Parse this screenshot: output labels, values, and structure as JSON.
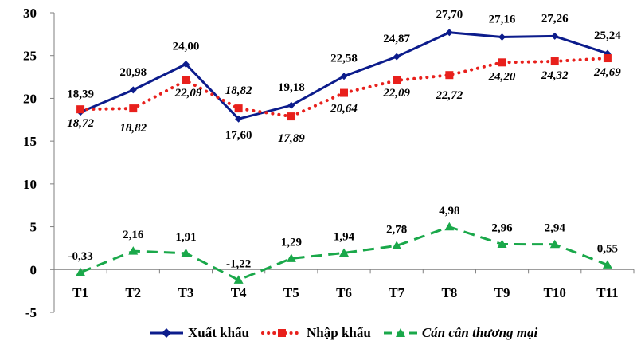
{
  "chart_data": {
    "type": "line",
    "categories": [
      "T1",
      "T2",
      "T3",
      "T4",
      "T5",
      "T6",
      "T7",
      "T8",
      "T9",
      "T10",
      "T11"
    ],
    "ylim": [
      -5,
      30
    ],
    "yticks": [
      -5,
      0,
      5,
      10,
      15,
      20,
      25,
      30
    ],
    "ytick_labels": [
      "-5",
      "0",
      "5",
      "10",
      "15",
      "20",
      "25",
      "30"
    ],
    "grid": false,
    "legend_position": "bottom",
    "series": [
      {
        "name": "Xuất khẩu",
        "color": "#0c1c8c",
        "line_style": "solid",
        "marker": "diamond",
        "values": [
          18.39,
          20.98,
          24.0,
          17.6,
          19.18,
          22.58,
          24.87,
          27.7,
          27.16,
          27.26,
          25.24
        ],
        "labels": [
          "18,39",
          "20,98",
          "24,00",
          "17,60",
          "19,18",
          "22,58",
          "24,87",
          "27,70",
          "27,16",
          "27,26",
          "25,24"
        ]
      },
      {
        "name": "Nhập khẩu",
        "color": "#e8201c",
        "line_style": "dotted",
        "marker": "square",
        "values": [
          18.72,
          18.82,
          22.09,
          18.82,
          17.89,
          20.64,
          22.09,
          22.72,
          24.2,
          24.32,
          24.69
        ],
        "labels": [
          "18,72",
          "18,82",
          "22,09",
          "18,82",
          "17,89",
          "20,64",
          "22,09",
          "22,72",
          "24,20",
          "24,32",
          "24,69"
        ]
      },
      {
        "name": "Cán cân thương mại",
        "color": "#1aa84a",
        "line_style": "dashed",
        "marker": "triangle",
        "values": [
          -0.33,
          2.16,
          1.91,
          -1.22,
          1.29,
          1.94,
          2.78,
          4.98,
          2.96,
          2.94,
          0.55
        ],
        "labels": [
          "-0,33",
          "2,16",
          "1,91",
          "-1,22",
          "1,29",
          "1,94",
          "2,78",
          "4,98",
          "2,96",
          "2,94",
          "0,55"
        ]
      }
    ]
  }
}
